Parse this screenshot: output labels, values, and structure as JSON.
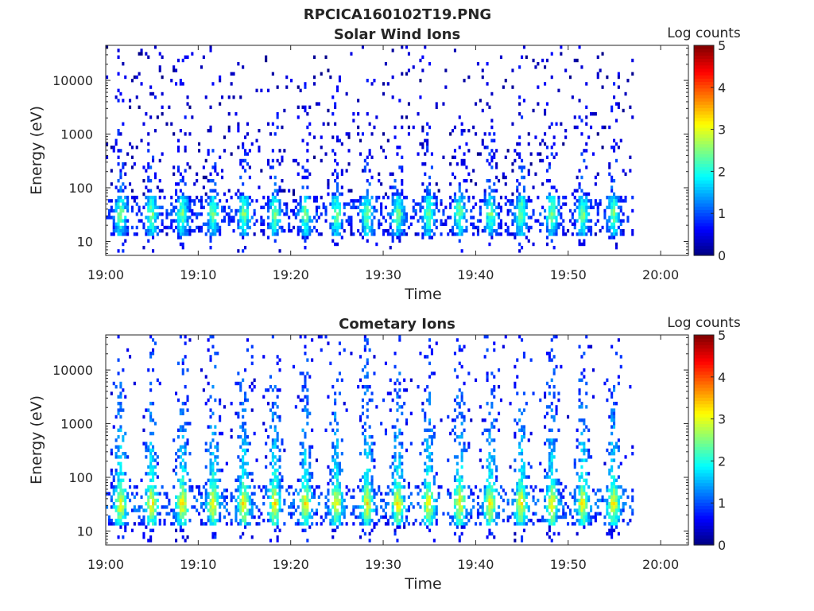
{
  "figure": {
    "suptitle": "RPCICA160102T19.PNG"
  },
  "colors": {
    "colormap": [
      "#00007f",
      "#0000ff",
      "#007fff",
      "#00ffff",
      "#7fff7f",
      "#ffff00",
      "#ff7f00",
      "#ff0000",
      "#7f0000"
    ],
    "axis": "#262626",
    "background": "#ffffff"
  },
  "chart_data": [
    {
      "type": "heatmap",
      "title": "Solar Wind Ions",
      "xlabel": "Time",
      "ylabel": "Energy (eV)",
      "x_ticks": [
        "19:00",
        "19:10",
        "19:20",
        "19:30",
        "19:40",
        "19:50",
        "20:00"
      ],
      "x_range_minutes": [
        0,
        63
      ],
      "y_scale": "log",
      "y_ticks": [
        {
          "value": 10,
          "label": "10"
        },
        {
          "value": 100,
          "label": "100"
        },
        {
          "value": 1000,
          "label": "1000"
        },
        {
          "value": 10000,
          "label": "10000"
        }
      ],
      "y_range": [
        5.5,
        45000
      ],
      "colorbar": {
        "label": "Log counts",
        "range": [
          0,
          5
        ],
        "ticks": [
          {
            "value": 0,
            "label": "0"
          },
          {
            "value": 1,
            "label": "1"
          },
          {
            "value": 2,
            "label": "2"
          },
          {
            "value": 3,
            "label": "3"
          },
          {
            "value": 4,
            "label": "4"
          },
          {
            "value": 5,
            "label": "5"
          }
        ]
      },
      "data_extent_minutes": [
        0,
        57.3
      ],
      "sweep_period_minutes": 3.33,
      "peak_energy_eV": 35,
      "peak_log_counts": 2.5,
      "high_energy_background_log_counts": 0.3
    },
    {
      "type": "heatmap",
      "title": "Cometary Ions",
      "xlabel": "Time",
      "ylabel": "Energy (eV)",
      "x_ticks": [
        "19:00",
        "19:10",
        "19:20",
        "19:30",
        "19:40",
        "19:50",
        "20:00"
      ],
      "x_range_minutes": [
        0,
        63
      ],
      "y_scale": "log",
      "y_ticks": [
        {
          "value": 10,
          "label": "10"
        },
        {
          "value": 100,
          "label": "100"
        },
        {
          "value": 1000,
          "label": "1000"
        },
        {
          "value": 10000,
          "label": "10000"
        }
      ],
      "y_range": [
        5.5,
        45000
      ],
      "colorbar": {
        "label": "Log counts",
        "range": [
          0,
          5
        ],
        "ticks": [
          {
            "value": 0,
            "label": "0"
          },
          {
            "value": 1,
            "label": "1"
          },
          {
            "value": 2,
            "label": "2"
          },
          {
            "value": 3,
            "label": "3"
          },
          {
            "value": 4,
            "label": "4"
          },
          {
            "value": 5,
            "label": "5"
          }
        ]
      },
      "data_extent_minutes": [
        0,
        57.3
      ],
      "sweep_period_minutes": 3.33,
      "peak_energy_eV": 35,
      "peak_log_counts": 3.2,
      "high_energy_background_log_counts": 0.6
    }
  ]
}
